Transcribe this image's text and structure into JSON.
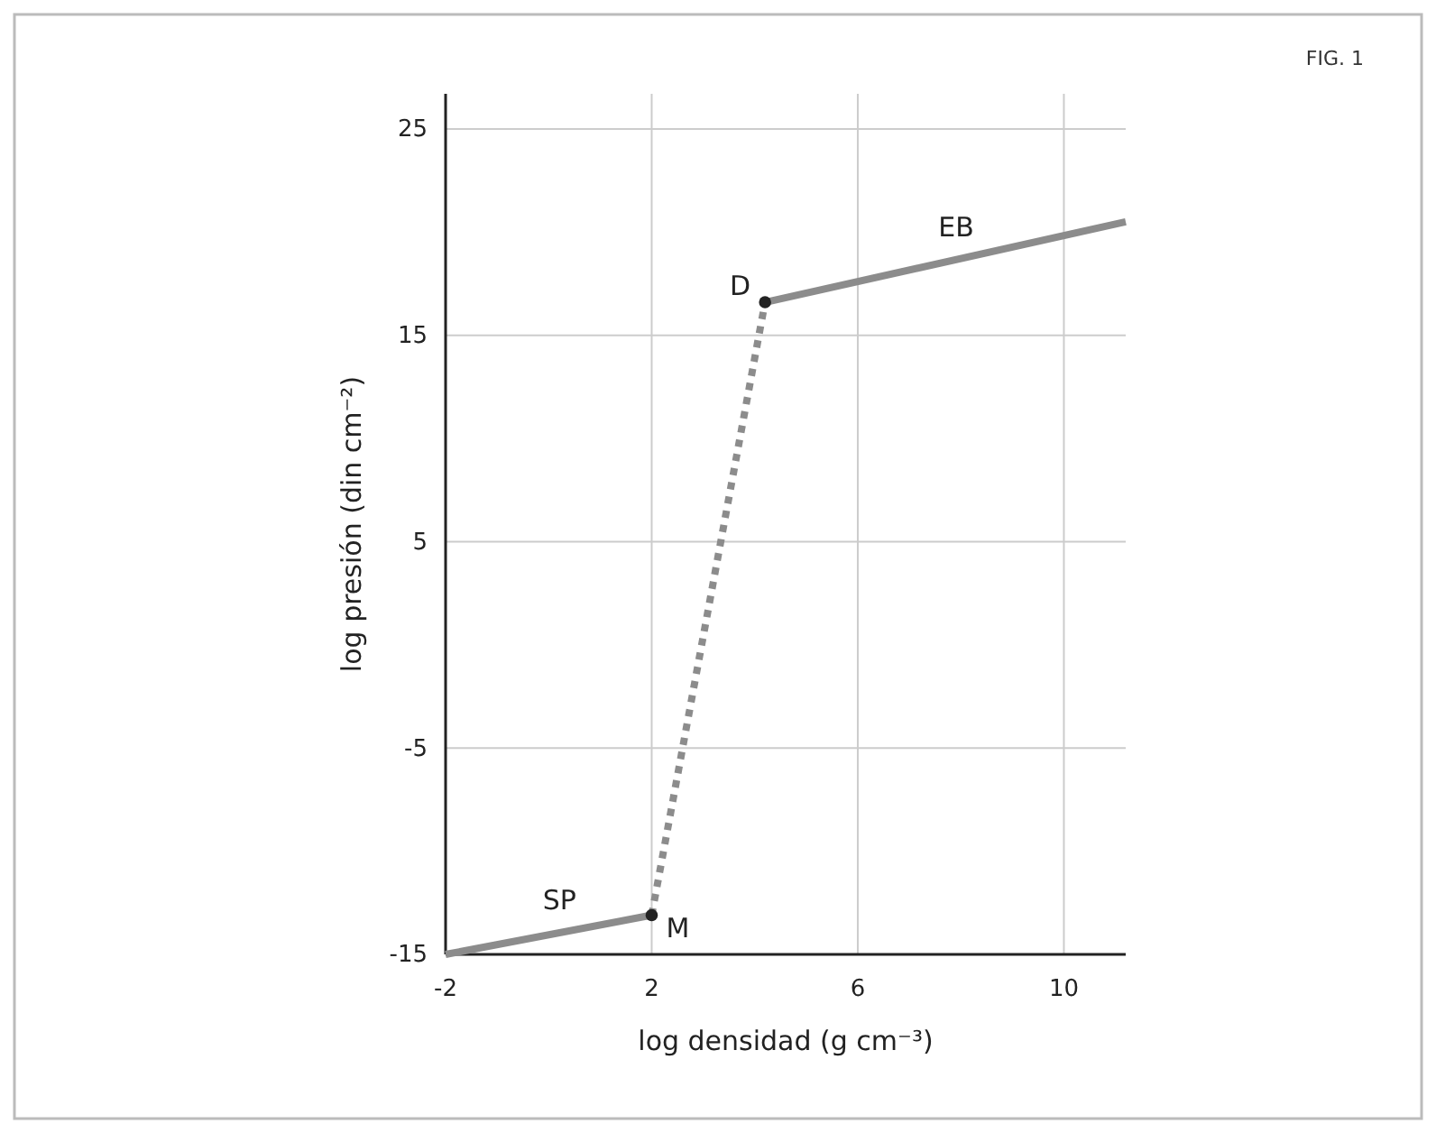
{
  "chart_data": {
    "type": "line",
    "xlabel": "log densidad (g cm⁻³)",
    "ylabel": "log presión (din cm⁻²)",
    "xlim": [
      -2,
      11.2
    ],
    "ylim": [
      -15,
      26.7
    ],
    "xticks": [
      -2,
      2,
      6,
      10
    ],
    "yticks": [
      -15,
      -5,
      5,
      15,
      25
    ],
    "grid": true,
    "series": [
      {
        "name": "SP",
        "color": "#8c8c8c",
        "x": [
          -2,
          2
        ],
        "values": [
          -15,
          -13.1
        ],
        "line_style": "solid"
      },
      {
        "color": "#8c8c8c",
        "x": [
          2,
          4.2
        ],
        "values": [
          -13.1,
          16.6
        ],
        "line_style": "dotted"
      },
      {
        "name": "EB",
        "color": "#8c8c8c",
        "x": [
          4.2,
          11.2
        ],
        "values": [
          16.6,
          20.5
        ],
        "line_style": "solid"
      },
      {
        "type": "scatter",
        "color": "#222222",
        "x": [
          2,
          4.2
        ],
        "values": [
          -13.1,
          16.6
        ],
        "marker": "circle"
      }
    ],
    "annotations": [
      "FIG. 1",
      {
        "text": "M",
        "x": 2,
        "y": -13.1
      },
      {
        "text": "D",
        "x": 4.2,
        "y": 16.6
      }
    ]
  }
}
